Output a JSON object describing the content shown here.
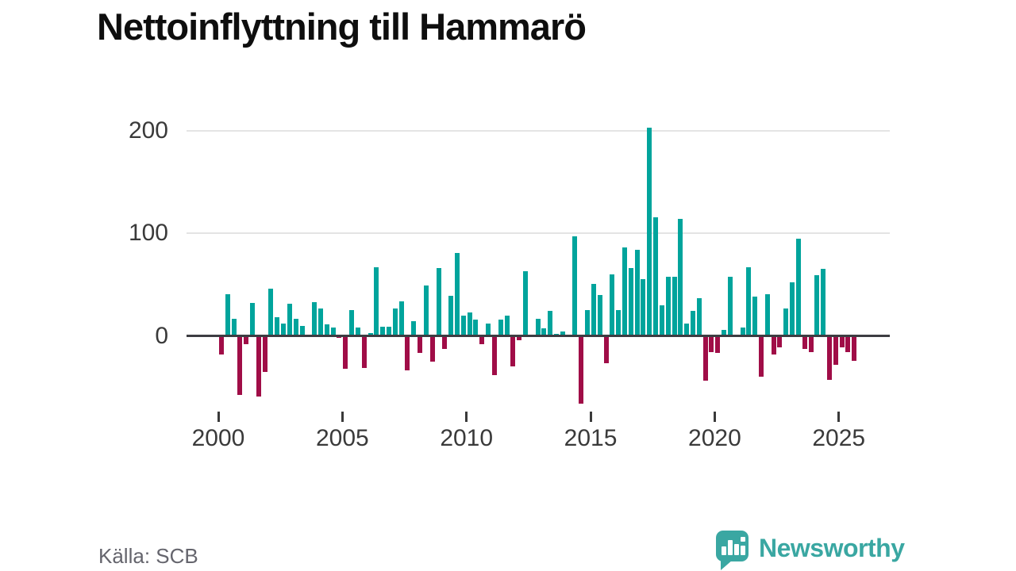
{
  "header": {
    "title": "Nettoinflyttning till Hammarö"
  },
  "footer": {
    "source": "Källa: SCB",
    "brand": "Newsworthy",
    "brand_icon": "bar-chart-speech-bubble-icon"
  },
  "colors": {
    "positive_bar": "#00A49C",
    "negative_bar": "#A00D47",
    "zero_line": "#3D3D42",
    "gridline": "#E4E4E4",
    "axis_text": "#3A3A3A",
    "title_text": "#0E0E0E",
    "source_text": "#65656D",
    "brand_teal": "#3AA7A2"
  },
  "chart_data": {
    "type": "bar",
    "title": "Nettoinflyttning till Hammarö",
    "x_unit": "quarter",
    "start": "2000-Q1",
    "end": "2025-Q3",
    "xlabel": "",
    "ylabel": "",
    "y_ticks": [
      0,
      100,
      200
    ],
    "x_ticks": [
      2000,
      2005,
      2010,
      2015,
      2020,
      2025
    ],
    "ylim": [
      -75,
      220
    ],
    "grid": "horizontal",
    "legend": "none",
    "positive_color": "#00A49C",
    "negative_color": "#A00D47",
    "series": [
      {
        "year": 2000,
        "values": [
          -18,
          41,
          17,
          -58
        ]
      },
      {
        "year": 2001,
        "values": [
          -8,
          32,
          -59,
          -35
        ]
      },
      {
        "year": 2002,
        "values": [
          46,
          18,
          12,
          31
        ]
      },
      {
        "year": 2003,
        "values": [
          17,
          10,
          0,
          33
        ]
      },
      {
        "year": 2004,
        "values": [
          27,
          11,
          8,
          -2
        ]
      },
      {
        "year": 2005,
        "values": [
          -32,
          25,
          8,
          -31
        ]
      },
      {
        "year": 2006,
        "values": [
          3,
          67,
          9,
          9
        ]
      },
      {
        "year": 2007,
        "values": [
          27,
          34,
          -34,
          14
        ]
      },
      {
        "year": 2008,
        "values": [
          -17,
          49,
          -25,
          66
        ]
      },
      {
        "year": 2009,
        "values": [
          -13,
          39,
          81,
          20
        ]
      },
      {
        "year": 2010,
        "values": [
          23,
          16,
          -8,
          12
        ]
      },
      {
        "year": 2011,
        "values": [
          -38,
          16,
          20,
          -30
        ]
      },
      {
        "year": 2012,
        "values": [
          -4,
          63,
          0,
          17
        ]
      },
      {
        "year": 2013,
        "values": [
          7,
          24,
          2,
          4
        ]
      },
      {
        "year": 2014,
        "values": [
          0,
          97,
          -66,
          25
        ]
      },
      {
        "year": 2015,
        "values": [
          51,
          40,
          -27,
          60
        ]
      },
      {
        "year": 2016,
        "values": [
          25,
          86,
          66,
          84
        ]
      },
      {
        "year": 2017,
        "values": [
          55,
          203,
          116,
          30
        ]
      },
      {
        "year": 2018,
        "values": [
          58,
          58,
          114,
          12
        ]
      },
      {
        "year": 2019,
        "values": [
          24,
          37,
          -44,
          -16
        ]
      },
      {
        "year": 2020,
        "values": [
          -17,
          6,
          58,
          0
        ]
      },
      {
        "year": 2021,
        "values": [
          8,
          67,
          38,
          -40
        ]
      },
      {
        "year": 2022,
        "values": [
          41,
          -18,
          -11,
          27
        ]
      },
      {
        "year": 2023,
        "values": [
          52,
          95,
          -13,
          -16
        ]
      },
      {
        "year": 2024,
        "values": [
          59,
          65,
          -43,
          -28
        ]
      },
      {
        "year": 2025,
        "values": [
          -11,
          -16,
          -24
        ]
      }
    ]
  }
}
